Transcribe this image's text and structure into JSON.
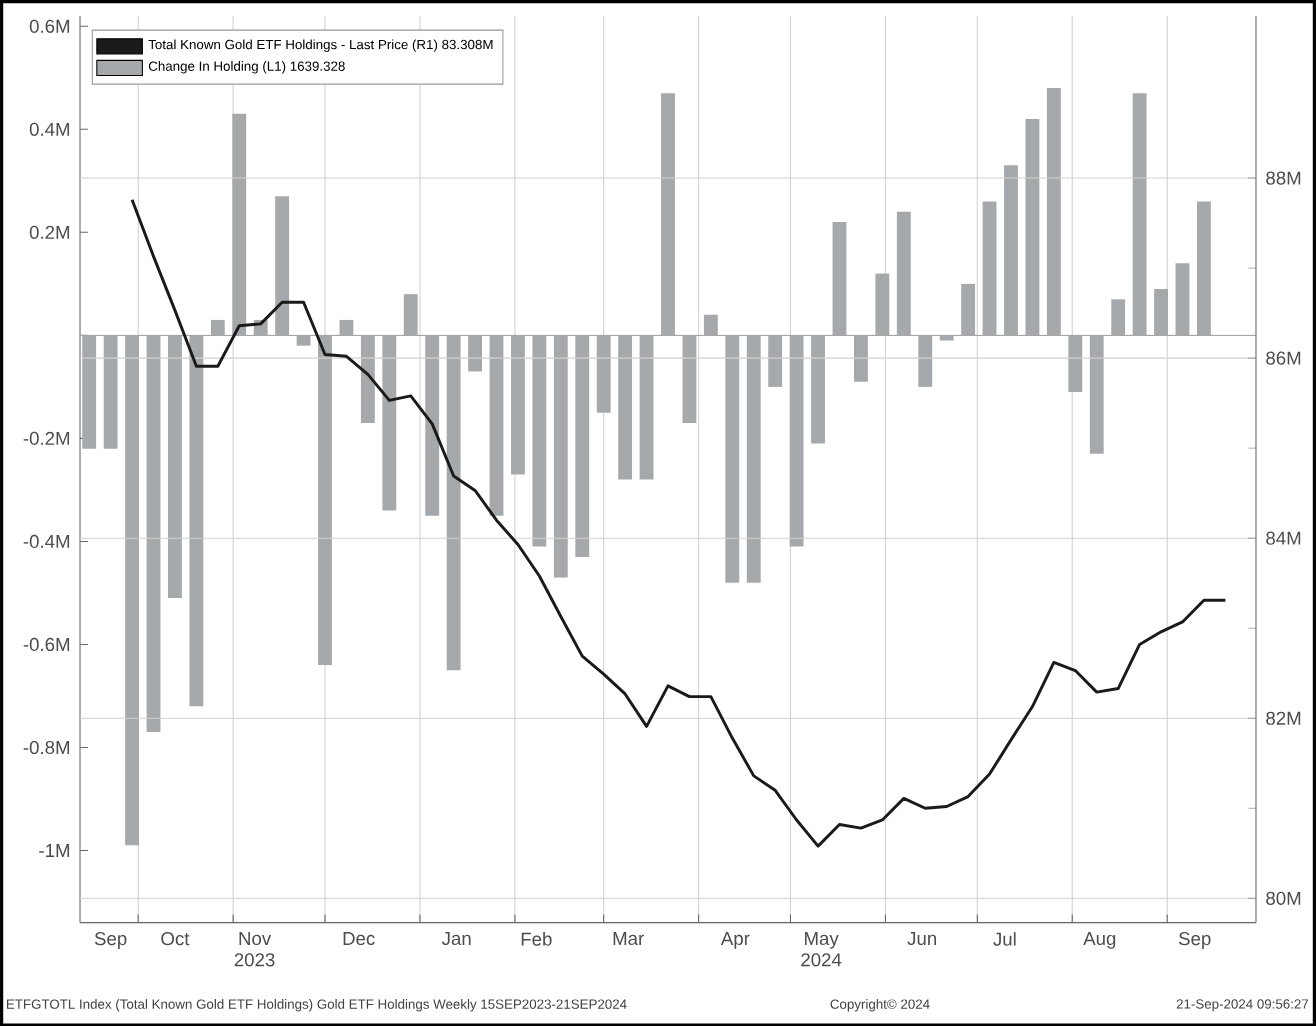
{
  "chart_data": {
    "type": "bar",
    "x": [
      "2023-09-15",
      "2023-09-22",
      "2023-09-29",
      "2023-10-06",
      "2023-10-13",
      "2023-10-20",
      "2023-10-27",
      "2023-11-03",
      "2023-11-10",
      "2023-11-17",
      "2023-11-24",
      "2023-12-01",
      "2023-12-08",
      "2023-12-15",
      "2023-12-22",
      "2023-12-29",
      "2024-01-05",
      "2024-01-12",
      "2024-01-19",
      "2024-01-26",
      "2024-02-02",
      "2024-02-09",
      "2024-02-16",
      "2024-02-23",
      "2024-03-01",
      "2024-03-08",
      "2024-03-15",
      "2024-03-22",
      "2024-03-29",
      "2024-04-05",
      "2024-04-12",
      "2024-04-19",
      "2024-04-26",
      "2024-05-03",
      "2024-05-10",
      "2024-05-17",
      "2024-05-24",
      "2024-05-31",
      "2024-06-07",
      "2024-06-14",
      "2024-06-21",
      "2024-06-28",
      "2024-07-05",
      "2024-07-12",
      "2024-07-19",
      "2024-07-26",
      "2024-08-02",
      "2024-08-09",
      "2024-08-16",
      "2024-08-23",
      "2024-08-30",
      "2024-09-06",
      "2024-09-13",
      "2024-09-20"
    ],
    "series": [
      {
        "name": "Total Known Gold ETF Holdings - Last Price (R1)   83.308M",
        "type": "line",
        "axis": "y2",
        "color": "#1a1a1a",
        "values": [
          null,
          null,
          87.76,
          87.13,
          86.53,
          85.91,
          85.91,
          86.36,
          86.38,
          86.62,
          86.62,
          86.04,
          86.02,
          85.82,
          85.53,
          85.58,
          85.27,
          84.69,
          84.53,
          84.2,
          83.93,
          83.58,
          83.13,
          82.69,
          82.49,
          82.27,
          81.91,
          82.36,
          82.24,
          82.24,
          81.78,
          81.36,
          81.2,
          80.87,
          80.58,
          80.82,
          80.78,
          80.87,
          81.11,
          81.0,
          81.02,
          81.13,
          81.38,
          81.76,
          82.13,
          82.62,
          82.53,
          82.29,
          82.33,
          82.82,
          82.96,
          83.07,
          83.31,
          83.31
        ]
      },
      {
        "name": "Change In Holding (L1)   1639.328",
        "color": "#a6a9ab",
        "values": [
          -0.22,
          -0.22,
          -0.99,
          -0.77,
          -0.51,
          -0.72,
          0.03,
          0.43,
          0.03,
          0.27,
          -0.02,
          -0.64,
          0.03,
          -0.17,
          -0.34,
          0.08,
          -0.35,
          -0.65,
          -0.07,
          -0.35,
          -0.27,
          -0.41,
          -0.47,
          -0.43,
          -0.15,
          -0.28,
          -0.28,
          0.47,
          -0.17,
          0.04,
          -0.48,
          -0.48,
          -0.1,
          -0.41,
          -0.21,
          0.22,
          -0.09,
          0.12,
          0.24,
          -0.1,
          -0.01,
          0.1,
          0.26,
          0.33,
          0.42,
          0.48,
          -0.11,
          -0.23,
          0.07,
          0.47,
          0.09,
          0.14,
          0.26,
          0.0
        ]
      }
    ],
    "xlim": [
      "2023-09-12",
      "2024-09-30"
    ],
    "xticks": [
      {
        "value": "2023-10-01",
        "label": null
      },
      {
        "value": "2023-11-01",
        "label": null
      },
      {
        "value": "2023-12-01",
        "label": null
      },
      {
        "value": "2024-01-01",
        "label": null
      },
      {
        "value": "2024-02-01",
        "label": null
      },
      {
        "value": "2024-03-01",
        "label": null
      },
      {
        "value": "2024-04-01",
        "label": null
      },
      {
        "value": "2024-05-01",
        "label": null
      },
      {
        "value": "2024-06-01",
        "label": null
      },
      {
        "value": "2024-07-01",
        "label": null
      },
      {
        "value": "2024-08-01",
        "label": null
      },
      {
        "value": "2024-09-01",
        "label": null
      },
      {
        "value": "2023-09-22",
        "label": "Sep"
      },
      {
        "value": "2023-10-13",
        "label": "Oct"
      },
      {
        "value": "2023-11-08",
        "label": "Nov 2023"
      },
      {
        "value": "2023-12-12",
        "label": "Dec"
      },
      {
        "value": "2024-01-13",
        "label": "Jan"
      },
      {
        "value": "2024-02-08",
        "label": "Feb"
      },
      {
        "value": "2024-03-09",
        "label": "Mar"
      },
      {
        "value": "2024-04-13",
        "label": "Apr"
      },
      {
        "value": "2024-05-11",
        "label": "May 2024"
      },
      {
        "value": "2024-06-13",
        "label": "Jun"
      },
      {
        "value": "2024-07-10",
        "label": "Jul"
      },
      {
        "value": "2024-08-10",
        "label": "Aug"
      },
      {
        "value": "2024-09-10",
        "label": "Sep"
      }
    ],
    "ylim": [
      -1.14,
      0.62
    ],
    "yticks": [
      {
        "value": 0.6,
        "label": "0.6M"
      },
      {
        "value": 0.4,
        "label": "0.4M"
      },
      {
        "value": 0.2,
        "label": "0.2M"
      },
      {
        "value": 0,
        "label": null
      },
      {
        "value": -0.2,
        "label": "-0.2M"
      },
      {
        "value": -0.4,
        "label": "-0.4M"
      },
      {
        "value": -0.6,
        "label": "-0.6M"
      },
      {
        "value": -0.8,
        "label": "-0.8M"
      },
      {
        "value": -1,
        "label": "-1M"
      }
    ],
    "y2lim": [
      79.73,
      89.8
    ],
    "y2ticks": [
      {
        "value": 88,
        "label": "88M"
      },
      {
        "value": 87,
        "label": null
      },
      {
        "value": 86,
        "label": "86M"
      },
      {
        "value": 85,
        "label": null
      },
      {
        "value": 84,
        "label": "84M"
      },
      {
        "value": 83,
        "label": null
      },
      {
        "value": 82,
        "label": "82M"
      },
      {
        "value": 81,
        "label": null
      },
      {
        "value": 80,
        "label": "80M"
      }
    ],
    "grid": true,
    "legend": "top left",
    "annotations": [
      "ETFGTOTL Index (Total Known Gold ETF Holdings) Gold ETF Holdings Weekly 15SEP2023-21SEP2024",
      "Copyright© 2024",
      "21-Sep-2024 09:56:27"
    ]
  }
}
